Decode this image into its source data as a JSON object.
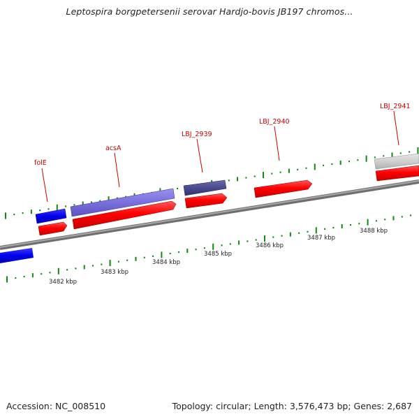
{
  "title": "Leptospira borgpetersenii serovar Hardjo-bovis JB197 chromos...",
  "footer": {
    "accession": "Accession: NC_008510",
    "summary": "Topology: circular; Length: 3,576,473 bp; Genes: 2,687"
  },
  "colors": {
    "forward_cds": "#ff0000",
    "gene_strand_forward": "#0000ee",
    "gene_name_label": "#cc0000",
    "tick_marks": "#118811",
    "backbone": "#808080"
  },
  "kbp_labels": [
    "3482 kbp",
    "3483 kbp",
    "3484 kbp",
    "3485 kbp",
    "3486 kbp",
    "3487 kbp",
    "3488 kbp"
  ],
  "gene_labels": [
    "folE",
    "acsA",
    "LBJ_2939",
    "LBJ_2940",
    "LBJ_2941"
  ]
}
